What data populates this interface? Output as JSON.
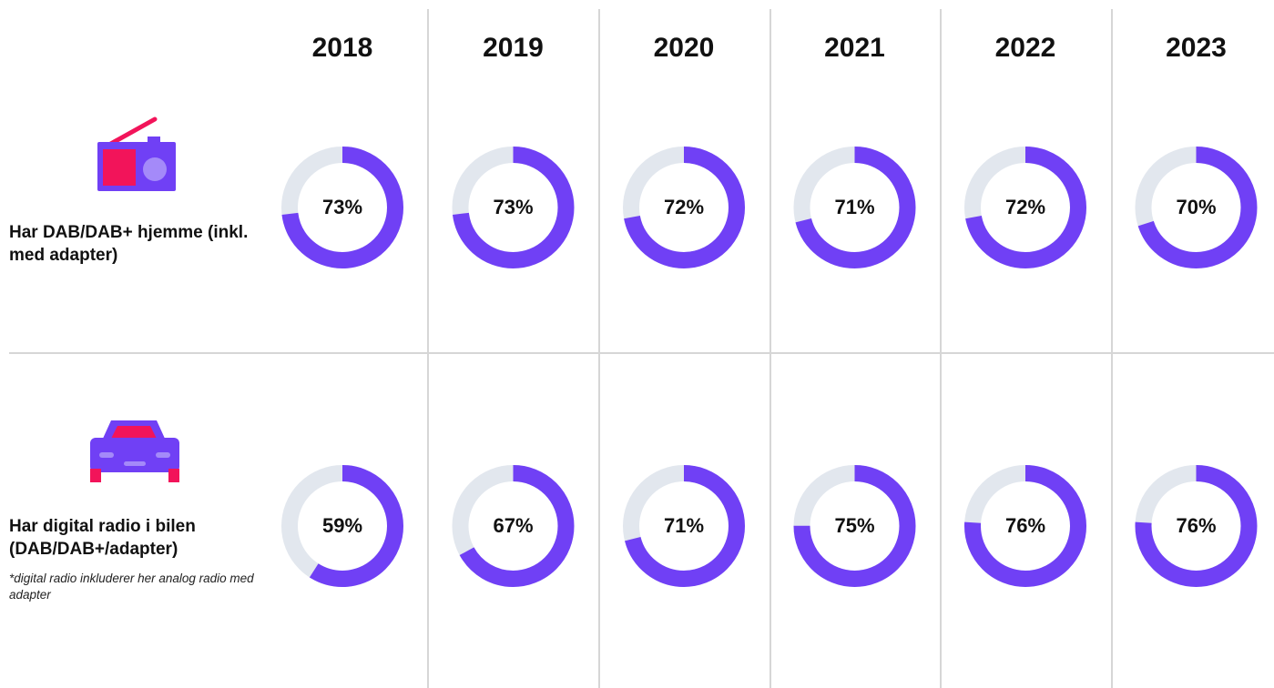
{
  "years": [
    "2018",
    "2019",
    "2020",
    "2021",
    "2022",
    "2023"
  ],
  "chart_data": [
    {
      "type": "donut",
      "title": "Har DAB/DAB+ hjemme (inkl. med adapter)",
      "values": [
        73,
        73,
        72,
        71,
        72,
        70
      ],
      "value_labels": [
        "73%",
        "73%",
        "72%",
        "71%",
        "72%",
        "70%"
      ],
      "color": "#7040f5",
      "track_color": "#e2e7ee"
    },
    {
      "type": "donut",
      "title": "Har digital radio i bilen (DAB/DAB+/adapter)",
      "note": "*digital radio inkluderer her analog radio med adapter",
      "values": [
        59,
        67,
        71,
        75,
        76,
        76
      ],
      "value_labels": [
        "59%",
        "67%",
        "71%",
        "75%",
        "76%",
        "76%"
      ],
      "color": "#7040f5",
      "track_color": "#e2e7ee"
    }
  ]
}
